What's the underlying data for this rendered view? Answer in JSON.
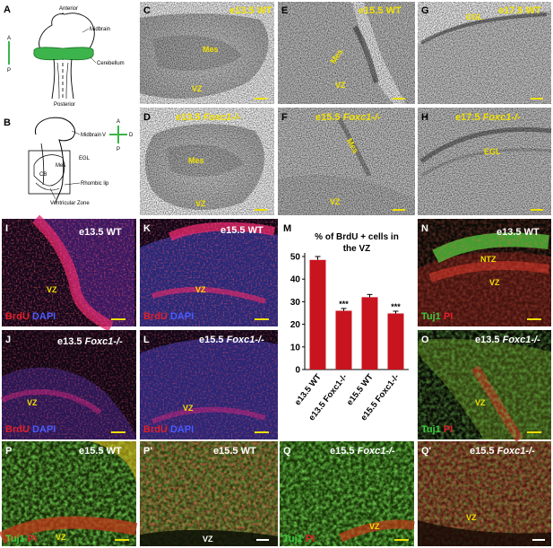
{
  "colors": {
    "label_yellow": "#f0e000",
    "cerebellum_green": "#3cb44b",
    "brdu_red": "#e0202c",
    "dapi_blue": "#2a3aa8",
    "tuj1_green": "#3ccc3c",
    "bar_red": "#c8141e"
  },
  "schematics": {
    "A": {
      "letter": "A",
      "anterior": "Anterior",
      "posterior": "Posterior",
      "midbrain": "Midbrain",
      "cerebellum": "Cerebellum",
      "axis_a": "A",
      "axis_p": "P"
    },
    "B": {
      "letter": "B",
      "midbrain": "Midbrain",
      "egl": "EGL",
      "mes": "Mes",
      "cb": "CB",
      "rhombic_lip": "Rhombic lip",
      "ventricular_zone": "Ventricular Zone",
      "axis_a": "A",
      "axis_p": "P",
      "axis_v": "V",
      "axis_d": "D"
    }
  },
  "panels": {
    "C": {
      "letter": "C",
      "title": "e13.5 WT",
      "tags": [
        "Mes",
        "VZ"
      ]
    },
    "D": {
      "letter": "D",
      "title_stage": "e13.5",
      "title_geno": "Foxc1-/-",
      "tags": [
        "Mes",
        "VZ"
      ]
    },
    "E": {
      "letter": "E",
      "title": "e15.5 WT",
      "tags": [
        "Mes",
        "VZ"
      ]
    },
    "F": {
      "letter": "F",
      "title_stage": "e15.5",
      "title_geno": "Foxc1-/-",
      "tags": [
        "Mes",
        "VZ"
      ]
    },
    "G": {
      "letter": "G",
      "title": "e17.5 WT",
      "tags": [
        "EGL"
      ]
    },
    "H": {
      "letter": "H",
      "title_stage": "e17.5",
      "title_geno": "Foxc1-/-",
      "tags": [
        "EGL"
      ]
    },
    "I": {
      "letter": "I",
      "title": "e13.5 WT",
      "tags": [
        "VZ"
      ],
      "stain_1": "BrdU",
      "stain_2": "DAPI"
    },
    "J": {
      "letter": "J",
      "title_stage": "e13.5",
      "title_geno": "Foxc1-/-",
      "tags": [
        "VZ"
      ],
      "stain_1": "BrdU",
      "stain_2": "DAPI"
    },
    "K": {
      "letter": "K",
      "title": "e15.5 WT",
      "tags": [
        "VZ"
      ],
      "stain_1": "BrdU",
      "stain_2": "DAPI"
    },
    "L": {
      "letter": "L",
      "title_stage": "e15.5",
      "title_geno": "Foxc1-/-",
      "tags": [
        "VZ"
      ],
      "stain_1": "BrdU",
      "stain_2": "DAPI"
    },
    "N": {
      "letter": "N",
      "title": "e13.5 WT",
      "tags": [
        "NTZ",
        "VZ"
      ],
      "stain_1": "Tuj1",
      "stain_2": "PI"
    },
    "O": {
      "letter": "O",
      "title_stage": "e13.5",
      "title_geno": "Foxc1-/-",
      "tags": [
        "VZ"
      ],
      "stain_1": "Tuj1",
      "stain_2": "PI"
    },
    "P": {
      "letter": "P",
      "title": "e15.5 WT",
      "tags": [
        "VZ"
      ],
      "stain_1": "Tuj1",
      "stain_2": "PI"
    },
    "P2": {
      "letter": "P'",
      "title": "e15.5 WT",
      "tags": [
        "VZ"
      ]
    },
    "Q": {
      "letter": "Q",
      "title_stage": "e15.5",
      "title_geno": "Foxc1-/-",
      "tags": [
        "VZ"
      ],
      "stain_1": "Tuj1",
      "stain_2": "PI"
    },
    "Q2": {
      "letter": "Q'",
      "title_stage": "e15.5",
      "title_geno": "Foxc1-/-",
      "tags": [
        "VZ"
      ]
    }
  },
  "chart_data": {
    "panel_letter": "M",
    "type": "bar",
    "title": "% of BrdU + cells in the VZ",
    "categories": [
      "e13.5 WT",
      "e13.5 Foxc1-/-",
      "e15.5 WT",
      "e15.5 Foxc1-/-"
    ],
    "values": [
      48.5,
      26,
      32,
      24.8
    ],
    "errors": [
      1.5,
      1.0,
      1.2,
      1.0
    ],
    "significance": [
      "",
      "***",
      "",
      "***"
    ],
    "ylim": [
      0,
      50
    ],
    "yticks": [
      0,
      10,
      20,
      30,
      40,
      50
    ],
    "grid": false,
    "bar_color": "#c8141e"
  }
}
